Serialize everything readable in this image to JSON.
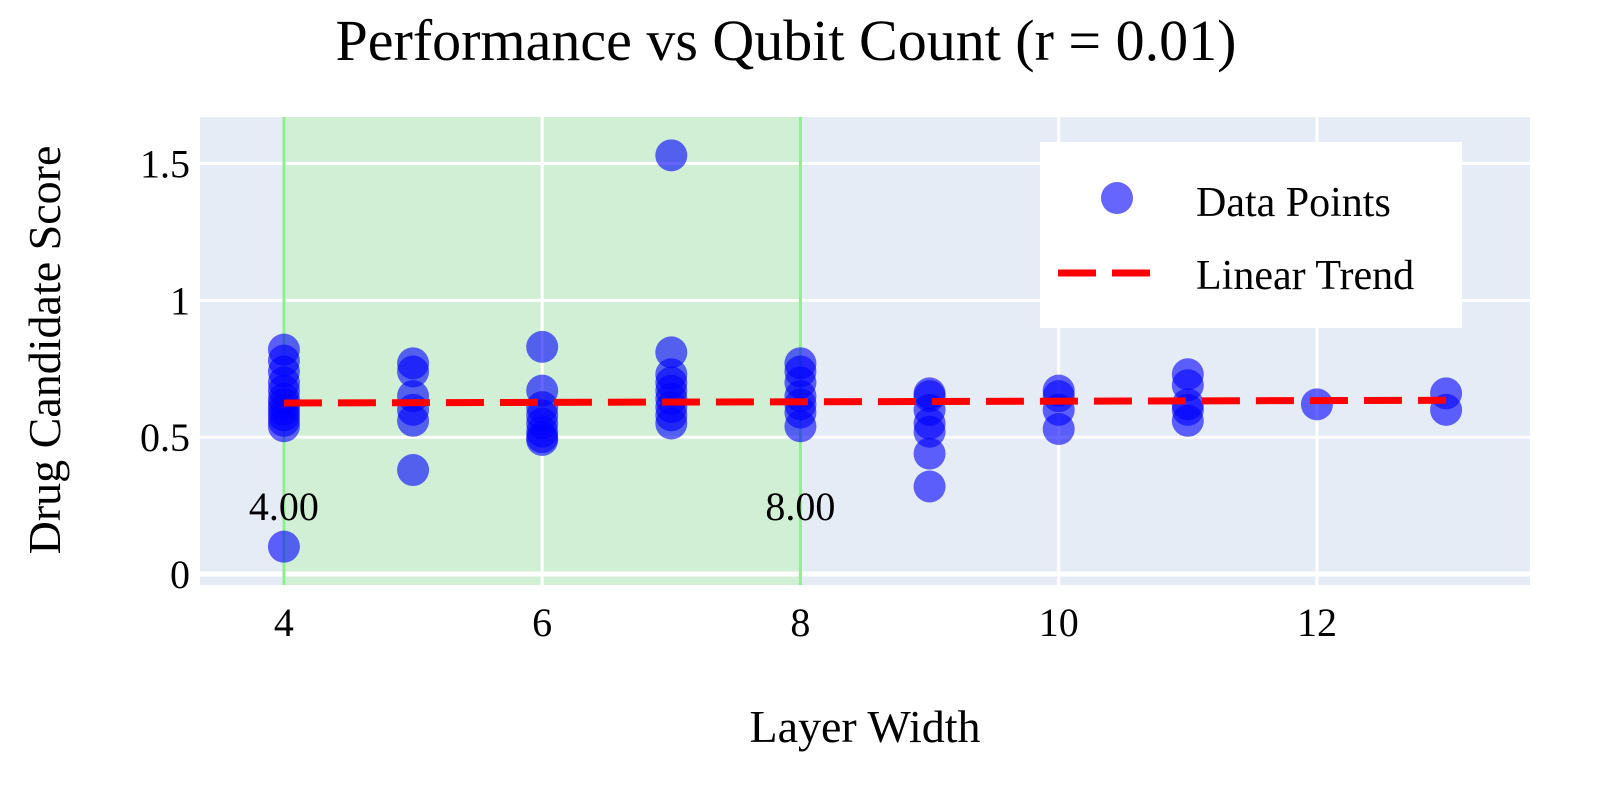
{
  "chart_data": {
    "type": "scatter",
    "title": "Performance vs Qubit Count (r = 0.01)",
    "xlabel": "Layer Width",
    "ylabel": "Drug Candidate Score",
    "xlim": [
      3.35,
      13.65
    ],
    "ylim": [
      -0.04,
      1.67
    ],
    "x_ticks": [
      4,
      6,
      8,
      10,
      12
    ],
    "x_tick_labels": [
      "4",
      "6",
      "8",
      "10",
      "12"
    ],
    "y_ticks": [
      0,
      0.5,
      1,
      1.5
    ],
    "y_tick_labels": [
      "0",
      "0.5",
      "1",
      "1.5"
    ],
    "grid": true,
    "legend_position": "top-right",
    "colors": {
      "plot_bg": "#e5ecf6",
      "grid": "#ffffff",
      "points": "#0000ff",
      "trend": "#ff0000",
      "highlight_fill": "#c8f0c8",
      "highlight_line": "#90ee90"
    },
    "highlight_region": {
      "x_start": 4,
      "x_end": 8,
      "start_label": "4.00",
      "end_label": "8.00"
    },
    "series": [
      {
        "name": "Data Points",
        "mode": "markers",
        "points": [
          [
            4,
            0.82
          ],
          [
            4,
            0.78
          ],
          [
            4,
            0.74
          ],
          [
            4,
            0.7
          ],
          [
            4,
            0.67
          ],
          [
            4,
            0.64
          ],
          [
            4,
            0.62
          ],
          [
            4,
            0.6
          ],
          [
            4,
            0.58
          ],
          [
            4,
            0.56
          ],
          [
            4,
            0.54
          ],
          [
            4,
            0.1
          ],
          [
            5,
            0.77
          ],
          [
            5,
            0.74
          ],
          [
            5,
            0.65
          ],
          [
            5,
            0.6
          ],
          [
            5,
            0.56
          ],
          [
            5,
            0.38
          ],
          [
            6,
            0.83
          ],
          [
            6,
            0.67
          ],
          [
            6,
            0.61
          ],
          [
            6,
            0.58
          ],
          [
            6,
            0.55
          ],
          [
            6,
            0.52
          ],
          [
            6,
            0.5
          ],
          [
            6,
            0.49
          ],
          [
            7,
            1.53
          ],
          [
            7,
            0.81
          ],
          [
            7,
            0.73
          ],
          [
            7,
            0.7
          ],
          [
            7,
            0.67
          ],
          [
            7,
            0.64
          ],
          [
            7,
            0.61
          ],
          [
            7,
            0.58
          ],
          [
            7,
            0.55
          ],
          [
            8,
            0.77
          ],
          [
            8,
            0.74
          ],
          [
            8,
            0.7
          ],
          [
            8,
            0.65
          ],
          [
            8,
            0.62
          ],
          [
            8,
            0.59
          ],
          [
            8,
            0.54
          ],
          [
            9,
            0.66
          ],
          [
            9,
            0.65
          ],
          [
            9,
            0.6
          ],
          [
            9,
            0.55
          ],
          [
            9,
            0.52
          ],
          [
            9,
            0.44
          ],
          [
            9,
            0.32
          ],
          [
            10,
            0.67
          ],
          [
            10,
            0.65
          ],
          [
            10,
            0.6
          ],
          [
            10,
            0.53
          ],
          [
            11,
            0.73
          ],
          [
            11,
            0.69
          ],
          [
            11,
            0.62
          ],
          [
            11,
            0.6
          ],
          [
            11,
            0.56
          ],
          [
            12,
            0.62
          ],
          [
            13,
            0.66
          ],
          [
            13,
            0.6
          ]
        ]
      },
      {
        "name": "Linear Trend",
        "mode": "dashed-line",
        "x": [
          4,
          13
        ],
        "y": [
          0.625,
          0.635
        ]
      }
    ]
  }
}
